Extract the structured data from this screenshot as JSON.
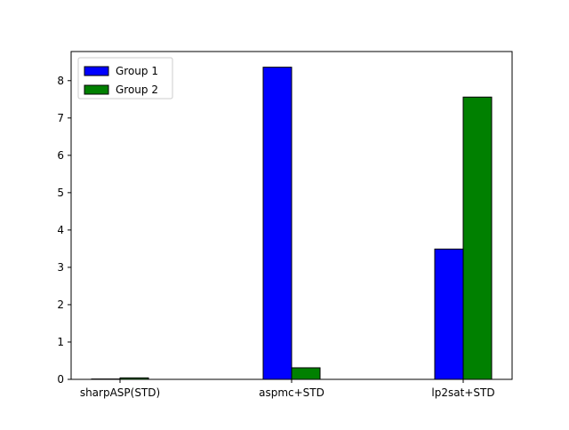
{
  "chart_data": {
    "type": "bar",
    "title": "",
    "xlabel": "",
    "ylabel": "",
    "categories": [
      "sharpASP(STD)",
      "aspmc+STD",
      "lp2sat+STD"
    ],
    "series": [
      {
        "name": "Group 1",
        "values": [
          0.01,
          8.36,
          3.49
        ],
        "color": "#0000ff"
      },
      {
        "name": "Group 2",
        "values": [
          0.04,
          0.31,
          7.56
        ],
        "color": "#008000"
      }
    ],
    "ylim": [
      0,
      8.78
    ],
    "yticks": [
      0,
      1,
      2,
      3,
      4,
      5,
      6,
      7,
      8
    ],
    "grid": false,
    "legend_position": "top-left",
    "edge_color": "#000000"
  }
}
